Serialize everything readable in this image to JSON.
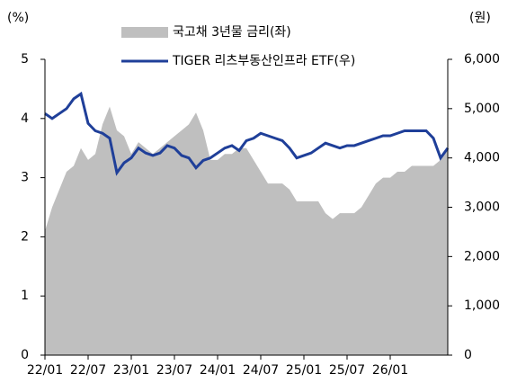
{
  "chart_data": {
    "type": "area-line",
    "y_label": "(%)",
    "y2_label": "(원)",
    "categories": [
      "22/01",
      null,
      null,
      null,
      null,
      null,
      "22/07",
      null,
      null,
      null,
      null,
      null,
      "23/01",
      null,
      null,
      null,
      null,
      null,
      "23/07",
      null,
      null,
      null,
      null,
      null,
      "24/01",
      null,
      null,
      null,
      null,
      null,
      "24/07",
      null,
      null,
      null,
      null,
      null,
      "25/01",
      null,
      null,
      null,
      null,
      null,
      "25/07",
      null,
      null,
      null,
      null,
      null,
      "26/01",
      null,
      null,
      null,
      null,
      null,
      null,
      null,
      null
    ],
    "series": [
      {
        "name": "국고채 3년물 금리(좌)",
        "kind": "area",
        "color": "#bfbfbf",
        "axis": "y",
        "values": [
          2.1,
          2.5,
          2.8,
          3.1,
          3.2,
          3.5,
          3.3,
          3.4,
          3.9,
          4.2,
          3.8,
          3.7,
          3.4,
          3.6,
          3.5,
          3.4,
          3.5,
          3.6,
          3.7,
          3.8,
          3.9,
          4.1,
          3.8,
          3.3,
          3.3,
          3.4,
          3.4,
          3.5,
          3.5,
          3.3,
          3.1,
          2.9,
          2.9,
          2.9,
          2.8,
          2.6,
          2.6,
          2.6,
          2.6,
          2.4,
          2.3,
          2.4,
          2.4,
          2.4,
          2.5,
          2.7,
          2.9,
          3.0,
          3.0,
          3.1,
          3.1,
          3.2,
          3.2,
          3.2,
          3.2,
          3.3,
          3.5
        ]
      },
      {
        "name": "TIGER 리츠부동산인프라 ETF(우)",
        "kind": "line",
        "color": "#1f3f99",
        "axis": "y2",
        "values": [
          4900,
          4800,
          4900,
          5000,
          5200,
          5300,
          4700,
          4550,
          4500,
          4400,
          3700,
          3900,
          4000,
          4200,
          4100,
          4050,
          4100,
          4250,
          4200,
          4050,
          4000,
          3800,
          3950,
          4000,
          4100,
          4200,
          4250,
          4150,
          4350,
          4400,
          4500,
          4450,
          4400,
          4350,
          4200,
          4000,
          4050,
          4100,
          4200,
          4300,
          4250,
          4200,
          4250,
          4250,
          4300,
          4350,
          4400,
          4450,
          4450,
          4500,
          4550,
          4550,
          4550,
          4550,
          4400,
          4000,
          4200
        ]
      }
    ],
    "ylim": [
      0,
      5
    ],
    "yticks": [
      0,
      1,
      2,
      3,
      4,
      5
    ],
    "y2lim": [
      0,
      6000
    ],
    "y2ticks": [
      0,
      {
        "value": 1000,
        "label": "1,000"
      },
      {
        "value": 2000,
        "label": "2,000"
      },
      {
        "value": 3000,
        "label": "3,000"
      },
      {
        "value": 4000,
        "label": "4,000"
      },
      {
        "value": 5000,
        "label": "5,000"
      },
      {
        "value": 6000,
        "label": "6,000"
      }
    ]
  }
}
